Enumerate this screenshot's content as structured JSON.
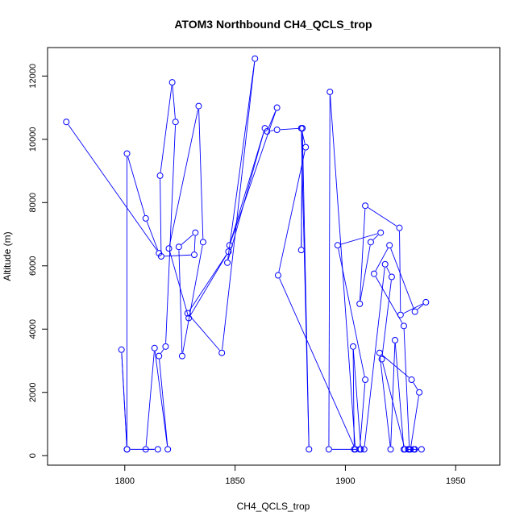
{
  "chart_data": {
    "type": "line",
    "title": "ATOM3 Northbound CH4_QCLS_trop",
    "xlabel": "CH4_QCLS_trop",
    "ylabel": "Altitude (m)",
    "xlim": [
      1765,
      1970
    ],
    "ylim": [
      -300,
      12900
    ],
    "xticks": [
      1800,
      1850,
      1900,
      1950
    ],
    "yticks": [
      0,
      2000,
      4000,
      6000,
      8000,
      10000,
      12000
    ],
    "grid": false,
    "legend": "none",
    "series_color": "#0000ff",
    "marker": "open-circle",
    "series": [
      {
        "x": [
          1773.5,
          1815.5,
          1809.5,
          1801.0,
          1801.0,
          1798.5,
          1801.0,
          1815.0,
          1809.5,
          1813.5,
          1819.5,
          1815.5,
          1818.5,
          1823.0,
          1821.5,
          1816.0,
          1816.5,
          1831.5,
          1832.0,
          1824.5,
          1826.0,
          1835.5,
          1833.5,
          1820.0,
          1829.0,
          1847.0,
          1828.5,
          1844.0,
          1859.0,
          1846.5,
          1863.5,
          1847.5,
          1869.0,
          1864.5,
          1869.0,
          1880.5,
          1880.0,
          1880.5,
          1883.5,
          1880.0,
          1882.0,
          1869.5,
          1904.5,
          1893.0,
          1892.5,
          1906.5,
          1909.0,
          1896.5,
          1916.0,
          1911.5,
          1906.5,
          1909.0,
          1924.5,
          1925.0,
          1936.5,
          1931.5,
          1920.0,
          1913.0,
          1926.5,
          1929.0,
          1931.5,
          1926.5,
          1922.5,
          1920.5,
          1915.5,
          1930.0,
          1933.5,
          1929.5,
          1928.5,
          1934.5,
          1931.0,
          1927.0,
          1916.5,
          1921.0,
          1918.0,
          1908.5,
          1907.0,
          1903.5,
          1904.0
        ],
        "y": [
          10550,
          6400,
          7500,
          9550,
          200,
          3350,
          200,
          200,
          200,
          3400,
          200,
          3150,
          3450,
          10550,
          11800,
          8850,
          6300,
          6350,
          7050,
          6600,
          3150,
          6750,
          11050,
          6550,
          4350,
          6450,
          4500,
          3250,
          12550,
          6100,
          10350,
          6650,
          11000,
          10250,
          10300,
          10350,
          6500,
          10350,
          200,
          10350,
          9750,
          5700,
          200,
          11500,
          200,
          200,
          2400,
          6650,
          7050,
          6750,
          4800,
          7900,
          7200,
          4450,
          4850,
          4550,
          6650,
          5750,
          4100,
          200,
          200,
          200,
          3650,
          200,
          3250,
          2400,
          2000,
          200,
          200,
          200,
          200,
          200,
          3050,
          5650,
          6050,
          200,
          200,
          3450,
          200
        ]
      }
    ]
  }
}
